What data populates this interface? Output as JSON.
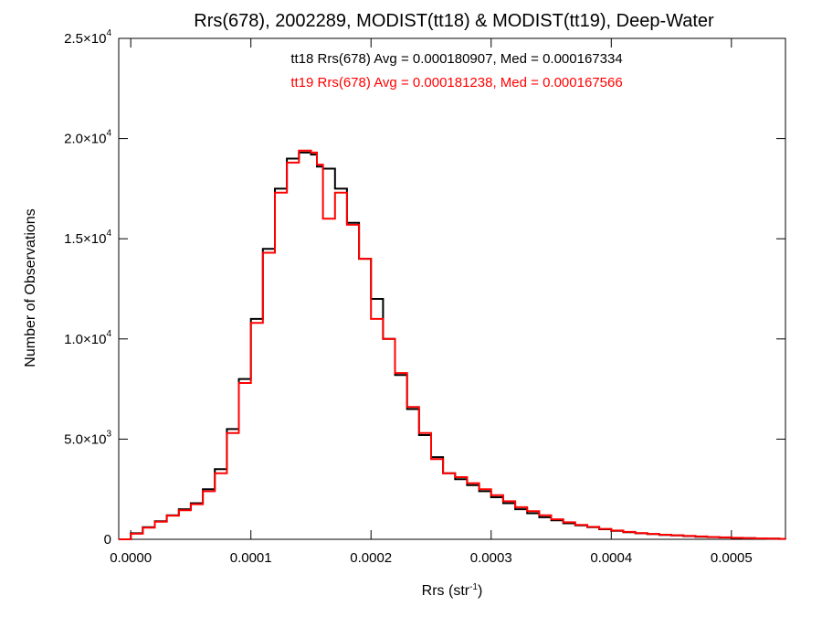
{
  "chart_data": {
    "type": "line",
    "title": "Rrs(678), 2002289, MODIST(tt18) & MODIST(tt19), Deep-Water",
    "xlabel": "Rrs (str",
    "xlabel_superscript": "-1",
    "xlabel_suffix": ")",
    "ylabel": "Number of Observations",
    "xlim": [
      -1e-05,
      0.000545
    ],
    "ylim": [
      0,
      25000
    ],
    "x_ticks": [
      {
        "value": 0.0,
        "label": "0.0000"
      },
      {
        "value": 0.0001,
        "label": "0.0001"
      },
      {
        "value": 0.0002,
        "label": "0.0002"
      },
      {
        "value": 0.0003,
        "label": "0.0003"
      },
      {
        "value": 0.0004,
        "label": "0.0004"
      },
      {
        "value": 0.0005,
        "label": "0.0005"
      }
    ],
    "y_ticks": [
      {
        "value": 0,
        "label": "0",
        "sup": ""
      },
      {
        "value": 5000,
        "label": "5.0×10",
        "sup": "3"
      },
      {
        "value": 10000,
        "label": "1.0×10",
        "sup": "4"
      },
      {
        "value": 15000,
        "label": "1.5×10",
        "sup": "4"
      },
      {
        "value": 20000,
        "label": "2.0×10",
        "sup": "4"
      },
      {
        "value": 25000,
        "label": "2.5×10",
        "sup": "4"
      }
    ],
    "grid": false,
    "annotations": [
      {
        "text": "tt18 Rrs(678) Avg = 0.000180907, Med = 0.000167334",
        "color": "#000000"
      },
      {
        "text": "tt19 Rrs(678) Avg = 0.000181238, Med = 0.000167566",
        "color": "#ff0000"
      }
    ],
    "series": [
      {
        "color": "#000000",
        "step": true,
        "x": [
          -1e-05,
          0.0,
          1e-05,
          2e-05,
          3e-05,
          4e-05,
          5e-05,
          6e-05,
          7e-05,
          8e-05,
          9e-05,
          0.0001,
          0.00011,
          0.00012,
          0.00013,
          0.00014,
          0.00015,
          0.000155,
          0.00016,
          0.00017,
          0.00018,
          0.00019,
          0.0002,
          0.00021,
          0.00022,
          0.00023,
          0.00024,
          0.00025,
          0.00026,
          0.00027,
          0.00028,
          0.00029,
          0.0003,
          0.00031,
          0.00032,
          0.00033,
          0.00034,
          0.00035,
          0.00036,
          0.00037,
          0.00038,
          0.00039,
          0.0004,
          0.00041,
          0.00042,
          0.00043,
          0.00044,
          0.00045,
          0.00046,
          0.00047,
          0.00048,
          0.00049,
          0.0005,
          0.00051,
          0.00052,
          0.00053,
          0.00054,
          0.000545
        ],
        "values": [
          0,
          300,
          600,
          900,
          1200,
          1500,
          1800,
          2500,
          3500,
          5500,
          8000,
          11000,
          14500,
          17500,
          19000,
          19300,
          19200,
          18600,
          18500,
          17500,
          15800,
          14000,
          12000,
          10000,
          8200,
          6500,
          5200,
          4100,
          3300,
          3000,
          2700,
          2400,
          2100,
          1800,
          1500,
          1300,
          1100,
          950,
          800,
          700,
          600,
          500,
          420,
          350,
          300,
          260,
          220,
          190,
          160,
          130,
          110,
          90,
          70,
          55,
          40,
          30,
          20,
          10
        ]
      },
      {
        "color": "#ff0000",
        "step": true,
        "x": [
          -1e-05,
          0.0,
          1e-05,
          2e-05,
          3e-05,
          4e-05,
          5e-05,
          6e-05,
          7e-05,
          8e-05,
          9e-05,
          0.0001,
          0.00011,
          0.00012,
          0.00013,
          0.00014,
          0.00015,
          0.000155,
          0.00016,
          0.00017,
          0.00018,
          0.00019,
          0.0002,
          0.00021,
          0.00022,
          0.00023,
          0.00024,
          0.00025,
          0.00026,
          0.00027,
          0.00028,
          0.00029,
          0.0003,
          0.00031,
          0.00032,
          0.00033,
          0.00034,
          0.00035,
          0.00036,
          0.00037,
          0.00038,
          0.00039,
          0.0004,
          0.00041,
          0.00042,
          0.00043,
          0.00044,
          0.00045,
          0.00046,
          0.00047,
          0.00048,
          0.00049,
          0.0005,
          0.00051,
          0.00052,
          0.00053,
          0.00054,
          0.000545
        ],
        "values": [
          0,
          280,
          580,
          880,
          1180,
          1450,
          1750,
          2400,
          3300,
          5300,
          7800,
          10800,
          14300,
          17300,
          18800,
          19400,
          19300,
          18700,
          16000,
          17300,
          15700,
          14000,
          11000,
          10000,
          8300,
          6600,
          5300,
          4000,
          3300,
          3100,
          2800,
          2500,
          2200,
          1900,
          1600,
          1400,
          1200,
          1000,
          850,
          720,
          620,
          520,
          440,
          370,
          310,
          270,
          230,
          200,
          170,
          140,
          115,
          95,
          75,
          60,
          45,
          32,
          22,
          12
        ]
      }
    ]
  }
}
